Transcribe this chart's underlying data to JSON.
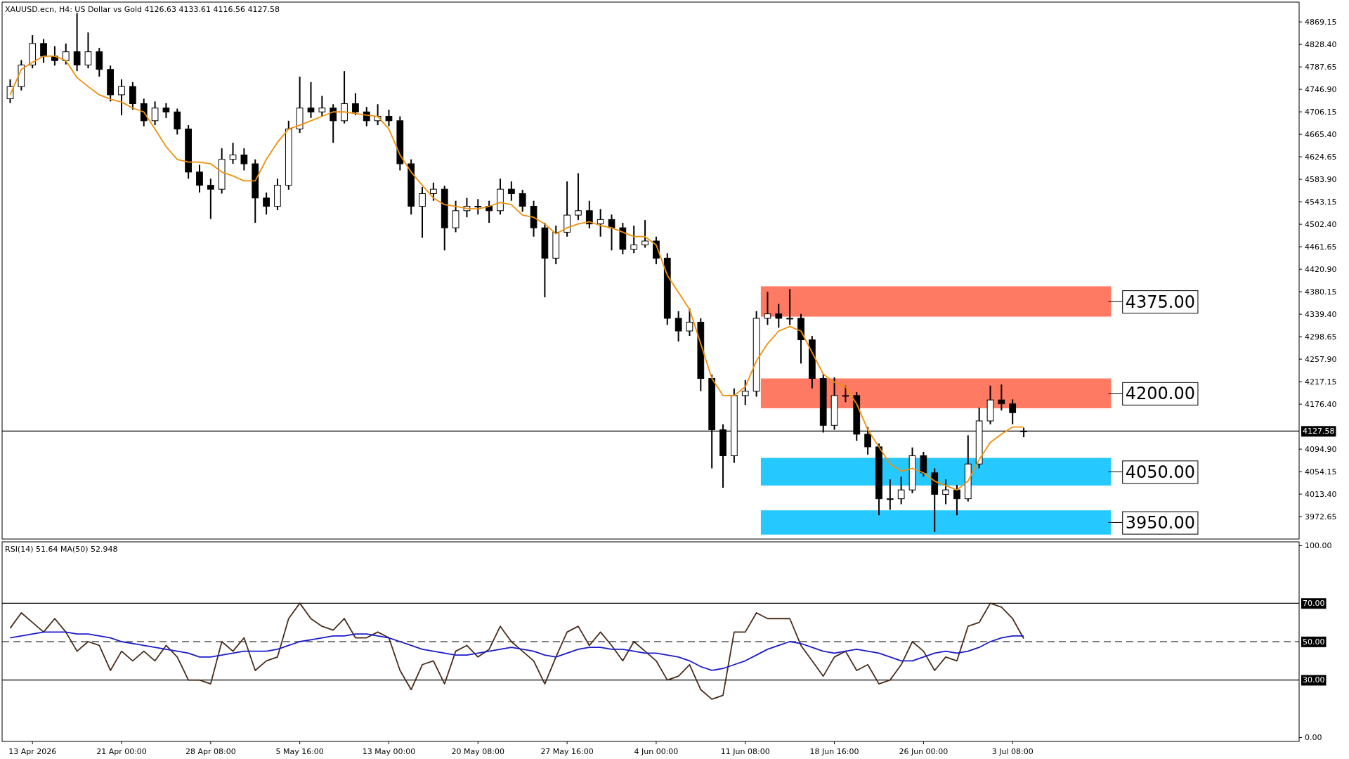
{
  "chart_data": [
    {
      "type": "candlestick",
      "title": "XAUUSD.ecn, H4:  US Dollar vs Gold  4126.63 4133.61 4116.56 4127.58",
      "categories": [
        null,
        null,
        null,
        null,
        null,
        null,
        null,
        null,
        null,
        null,
        null,
        null,
        null,
        null,
        null,
        null,
        null,
        null,
        null,
        null,
        null,
        null,
        null,
        null,
        null,
        null,
        null,
        null,
        null,
        null,
        null,
        null,
        null,
        null,
        null,
        null,
        null,
        null,
        null,
        null,
        null,
        null,
        null,
        null,
        null,
        null,
        null,
        null,
        null,
        null,
        null,
        null,
        null,
        null,
        null,
        null,
        null,
        null,
        null,
        null,
        null,
        null,
        null,
        null,
        null,
        null,
        null,
        null,
        null,
        null,
        null,
        null,
        null,
        null,
        null,
        null,
        null,
        null,
        null,
        null,
        null,
        null,
        null,
        null,
        null,
        null,
        null,
        null,
        null,
        null,
        null,
        null,
        null,
        null,
        null,
        null,
        null,
        null,
        null,
        null,
        null,
        null,
        null,
        null,
        null,
        null,
        null,
        null,
        null,
        null,
        null,
        null,
        null,
        null,
        null,
        null
      ],
      "ohlc": [
        [
          4730,
          4765,
          4722,
          4752
        ],
        [
          4752,
          4800,
          4745,
          4791
        ],
        [
          4791,
          4845,
          4785,
          4830
        ],
        [
          4830,
          4838,
          4795,
          4807
        ],
        [
          4807,
          4825,
          4790,
          4799
        ],
        [
          4799,
          4830,
          4792,
          4815
        ],
        [
          4815,
          4885,
          4780,
          4791
        ],
        [
          4791,
          4850,
          4785,
          4815
        ],
        [
          4815,
          4822,
          4770,
          4783
        ],
        [
          4783,
          4790,
          4725,
          4737
        ],
        [
          4737,
          4765,
          4700,
          4752
        ],
        [
          4752,
          4760,
          4710,
          4721
        ],
        [
          4721,
          4730,
          4680,
          4690
        ],
        [
          4690,
          4725,
          4682,
          4713
        ],
        [
          4713,
          4722,
          4695,
          4706
        ],
        [
          4706,
          4712,
          4665,
          4675
        ],
        [
          4675,
          4682,
          4585,
          4597
        ],
        [
          4597,
          4610,
          4560,
          4573
        ],
        [
          4573,
          4585,
          4512,
          4566
        ],
        [
          4566,
          4640,
          4558,
          4620
        ],
        [
          4620,
          4650,
          4612,
          4628
        ],
        [
          4628,
          4640,
          4600,
          4612
        ],
        [
          4612,
          4620,
          4505,
          4550
        ],
        [
          4550,
          4560,
          4520,
          4535
        ],
        [
          4535,
          4585,
          4528,
          4573
        ],
        [
          4573,
          4690,
          4565,
          4675
        ],
        [
          4675,
          4770,
          4668,
          4713
        ],
        [
          4713,
          4760,
          4695,
          4706
        ],
        [
          4706,
          4735,
          4698,
          4713
        ],
        [
          4713,
          4720,
          4650,
          4690
        ],
        [
          4690,
          4780,
          4685,
          4721
        ],
        [
          4721,
          4740,
          4700,
          4706
        ],
        [
          4706,
          4715,
          4680,
          4690
        ],
        [
          4690,
          4720,
          4682,
          4698
        ],
        [
          4698,
          4710,
          4680,
          4690
        ],
        [
          4690,
          4698,
          4600,
          4612
        ],
        [
          4612,
          4620,
          4520,
          4535
        ],
        [
          4535,
          4570,
          4478,
          4558
        ],
        [
          4558,
          4578,
          4545,
          4566
        ],
        [
          4566,
          4572,
          4455,
          4496
        ],
        [
          4496,
          4545,
          4488,
          4527
        ],
        [
          4527,
          4550,
          4515,
          4535
        ],
        [
          4535,
          4548,
          4520,
          4535
        ],
        [
          4535,
          4545,
          4505,
          4527
        ],
        [
          4527,
          4585,
          4520,
          4566
        ],
        [
          4566,
          4580,
          4545,
          4558
        ],
        [
          4558,
          4565,
          4525,
          4535
        ],
        [
          4535,
          4545,
          4480,
          4496
        ],
        [
          4496,
          4505,
          4370,
          4441
        ],
        [
          4441,
          4500,
          4430,
          4488
        ],
        [
          4488,
          4580,
          4480,
          4519
        ],
        [
          4519,
          4595,
          4510,
          4527
        ],
        [
          4527,
          4545,
          4495,
          4503
        ],
        [
          4503,
          4530,
          4480,
          4511
        ],
        [
          4511,
          4520,
          4455,
          4496
        ],
        [
          4496,
          4505,
          4448,
          4457
        ],
        [
          4457,
          4500,
          4450,
          4465
        ],
        [
          4465,
          4510,
          4460,
          4472
        ],
        [
          4472,
          4480,
          4430,
          4441
        ],
        [
          4441,
          4450,
          4320,
          4332
        ],
        [
          4332,
          4345,
          4290,
          4309
        ],
        [
          4309,
          4350,
          4300,
          4325
        ],
        [
          4325,
          4332,
          4200,
          4223
        ],
        [
          4223,
          4230,
          4060,
          4130
        ],
        [
          4130,
          4140,
          4025,
          4083
        ],
        [
          4083,
          4205,
          4070,
          4192
        ],
        [
          4192,
          4220,
          4175,
          4200
        ],
        [
          4200,
          4345,
          4190,
          4332
        ],
        [
          4332,
          4380,
          4320,
          4340
        ],
        [
          4340,
          4358,
          4315,
          4332
        ],
        [
          4332,
          4385,
          4320,
          4332
        ],
        [
          4332,
          4340,
          4250,
          4293
        ],
        [
          4293,
          4300,
          4205,
          4223
        ],
        [
          4223,
          4230,
          4125,
          4138
        ],
        [
          4138,
          4225,
          4130,
          4192
        ],
        [
          4192,
          4210,
          4180,
          4192
        ],
        [
          4192,
          4198,
          4110,
          4122
        ],
        [
          4122,
          4135,
          4085,
          4099
        ],
        [
          4099,
          4105,
          3975,
          4005
        ],
        [
          4005,
          4040,
          3985,
          4005
        ],
        [
          4005,
          4045,
          3995,
          4021
        ],
        [
          4021,
          4098,
          4015,
          4083
        ],
        [
          4083,
          4090,
          4045,
          4052
        ],
        [
          4052,
          4060,
          3945,
          4013
        ],
        [
          4013,
          4040,
          3995,
          4021
        ],
        [
          4021,
          4030,
          3975,
          4005
        ],
        [
          4005,
          4120,
          4000,
          4068
        ],
        [
          4068,
          4170,
          4060,
          4146
        ],
        [
          4146,
          4210,
          4140,
          4184
        ],
        [
          4184,
          4212,
          4165,
          4177
        ],
        [
          4177,
          4185,
          4140,
          4161
        ],
        [
          4126.63,
          4133.61,
          4116.56,
          4127.58
        ],
        null,
        null,
        null,
        null,
        null,
        null,
        null,
        null,
        null,
        null,
        null,
        null,
        null,
        null,
        null,
        null,
        null,
        null,
        null,
        null,
        null,
        null,
        null,
        null
      ],
      "series": [
        {
          "type": "line",
          "color": "#f0900a",
          "values": [
            4737,
            4783,
            4796,
            4807,
            4807,
            4799,
            4768,
            4752,
            4737,
            4729,
            4724,
            4713,
            4706,
            4675,
            4643,
            4620,
            4615,
            4615,
            4612,
            4597,
            4590,
            4581,
            4581,
            4620,
            4651,
            4675,
            4682,
            4690,
            4698,
            4706,
            4706,
            4703,
            4700,
            4698,
            4675,
            4628,
            4597,
            4573,
            4550,
            4538,
            4535,
            4531,
            4530,
            4535,
            4542,
            4538,
            4519,
            4515,
            4503,
            4485,
            4496,
            4503,
            4507,
            4500,
            4496,
            4488,
            4480,
            4480,
            4465,
            4410,
            4379,
            4348,
            4286,
            4223,
            4192,
            4192,
            4208,
            4255,
            4286,
            4309,
            4317,
            4309,
            4270,
            4231,
            4216,
            4208,
            4177,
            4130,
            4099,
            4068,
            4055,
            4060,
            4052,
            4037,
            4029,
            4021,
            4037,
            4076,
            4107,
            4122,
            4135,
            4135,
            null,
            null,
            null,
            null,
            null,
            null,
            null,
            null,
            null,
            null,
            null,
            null,
            null,
            null,
            null,
            null,
            null,
            null,
            null,
            null,
            null,
            null,
            null,
            null
          ]
        }
      ],
      "ylim": [
        3932,
        4905
      ],
      "yticks": [
        {
          "value": 4869.15,
          "label": "4869.15"
        },
        {
          "value": 4828.4,
          "label": "4828.40"
        },
        {
          "value": 4787.65,
          "label": "4787.65"
        },
        {
          "value": 4746.9,
          "label": "4746.90"
        },
        {
          "value": 4706.15,
          "label": "4706.15"
        },
        {
          "value": 4665.4,
          "label": "4665.40"
        },
        {
          "value": 4624.65,
          "label": "4624.65"
        },
        {
          "value": 4583.9,
          "label": "4583.90"
        },
        {
          "value": 4543.15,
          "label": "4543.15"
        },
        {
          "value": 4502.4,
          "label": "4502.40"
        },
        {
          "value": 4461.65,
          "label": "4461.65"
        },
        {
          "value": 4420.9,
          "label": "4420.90"
        },
        {
          "value": 4380.15,
          "label": "4380.15"
        },
        {
          "value": 4339.4,
          "label": "4339.40"
        },
        {
          "value": 4298.65,
          "label": "4298.65"
        },
        {
          "value": 4257.9,
          "label": "4257.90"
        },
        {
          "value": 4217.15,
          "label": "4217.15"
        },
        {
          "value": 4176.4,
          "label": "4176.40"
        },
        {
          "value": 4094.9,
          "label": "4094.90"
        },
        {
          "value": 4054.15,
          "label": "4054.15"
        },
        {
          "value": 4013.4,
          "label": "4013.40"
        },
        {
          "value": 3972.65,
          "label": "3972.65"
        }
      ],
      "ref_lines": [
        {
          "axis": "y",
          "value": 4127.58,
          "label": "4127.58",
          "color": "#000000"
        }
      ],
      "bands": [
        {
          "axis": "y",
          "from": 4335,
          "to": 4390,
          "label": "4375.00",
          "color": "#ff6347"
        },
        {
          "axis": "y",
          "from": 4169,
          "to": 4223,
          "label": "4200.00",
          "color": "#ff6347"
        },
        {
          "axis": "y",
          "from": 4029,
          "to": 4079,
          "label": "4050.00",
          "color": "#00bfff"
        },
        {
          "axis": "y",
          "from": 3940,
          "to": 3984,
          "label": "3950.00",
          "color": "#00bfff"
        }
      ],
      "tick_labels": "y"
    },
    {
      "type": "line",
      "title": "RSI(14) 51.64 MA(50) 52.948",
      "categories": [
        null,
        null,
        "13 Apr 2026",
        null,
        null,
        null,
        null,
        null,
        null,
        null,
        "21 Apr 00:00",
        null,
        null,
        null,
        null,
        null,
        null,
        null,
        "28 Apr 08:00",
        null,
        null,
        null,
        null,
        null,
        null,
        null,
        "5 May 16:00",
        null,
        null,
        null,
        null,
        null,
        null,
        null,
        "13 May 00:00",
        null,
        null,
        null,
        null,
        null,
        null,
        null,
        "20 May 08:00",
        null,
        null,
        null,
        null,
        null,
        null,
        null,
        "27 May 16:00",
        null,
        null,
        null,
        null,
        null,
        null,
        null,
        "4 Jun 00:00",
        null,
        null,
        null,
        null,
        null,
        null,
        null,
        "11 Jun 08:00",
        null,
        null,
        null,
        null,
        null,
        null,
        null,
        "18 Jun 16:00",
        null,
        null,
        null,
        null,
        null,
        null,
        null,
        "26 Jun 00:00",
        null,
        null,
        null,
        null,
        null,
        null,
        null,
        "3 Jul 08:00",
        null,
        null,
        null,
        null,
        null,
        null,
        null,
        null,
        null,
        null,
        null,
        null,
        null,
        null,
        null,
        null,
        null,
        null,
        null,
        null,
        null,
        null,
        null,
        null,
        null
      ],
      "series": [
        {
          "color": "#4a2c1a",
          "values": [
            57,
            65,
            60,
            55,
            62,
            55,
            45,
            50,
            48,
            35,
            45,
            40,
            45,
            40,
            48,
            42,
            30,
            30,
            28,
            50,
            45,
            52,
            35,
            40,
            42,
            62,
            70,
            62,
            58,
            56,
            62,
            52,
            52,
            55,
            52,
            35,
            25,
            38,
            40,
            28,
            45,
            48,
            42,
            46,
            58,
            50,
            45,
            40,
            28,
            42,
            55,
            58,
            48,
            55,
            48,
            40,
            50,
            45,
            40,
            30,
            32,
            38,
            25,
            20,
            22,
            55,
            55,
            65,
            62,
            62,
            62,
            48,
            40,
            32,
            42,
            45,
            35,
            38,
            28,
            30,
            38,
            50,
            45,
            35,
            42,
            40,
            58,
            60,
            70,
            68,
            62,
            51.64,
            null,
            null,
            null,
            null,
            null,
            null,
            null,
            null,
            null,
            null,
            null,
            null,
            null,
            null,
            null,
            null,
            null,
            null,
            null,
            null,
            null,
            null,
            null,
            null
          ]
        },
        {
          "color": "#1a1acc",
          "values": [
            52,
            53,
            54,
            55,
            55,
            55,
            54,
            54,
            53,
            52,
            50,
            49,
            48,
            47,
            46,
            45,
            44,
            42,
            42,
            43,
            44,
            45,
            45,
            45,
            46,
            48,
            50,
            51,
            52,
            53,
            53,
            54,
            54,
            53,
            52,
            50,
            48,
            46,
            45,
            44,
            43,
            43,
            44,
            45,
            46,
            47,
            46,
            45,
            43,
            42,
            44,
            46,
            47,
            47,
            46,
            46,
            45,
            44,
            44,
            43,
            42,
            40,
            37,
            35,
            36,
            38,
            40,
            43,
            46,
            48,
            50,
            49,
            47,
            45,
            44,
            45,
            46,
            45,
            44,
            42,
            40,
            40,
            42,
            44,
            45,
            44,
            45,
            47,
            50,
            52,
            53,
            52.948,
            null,
            null,
            null,
            null,
            null,
            null,
            null,
            null,
            null,
            null,
            null,
            null,
            null,
            null,
            null,
            null,
            null,
            null,
            null,
            null,
            null,
            null,
            null,
            null
          ]
        }
      ],
      "ylim": [
        -2,
        102
      ],
      "yticks": [
        {
          "value": 0,
          "label": "0.00"
        },
        {
          "value": 100,
          "label": "100.00"
        }
      ],
      "ref_lines": [
        {
          "axis": "y",
          "value": 70,
          "label": "70.00",
          "line_style": "solid"
        },
        {
          "axis": "y",
          "value": 50,
          "label": "50.00",
          "line_style": "dashed"
        },
        {
          "axis": "y",
          "value": 30,
          "label": "30.00",
          "line_style": "solid"
        }
      ]
    }
  ]
}
